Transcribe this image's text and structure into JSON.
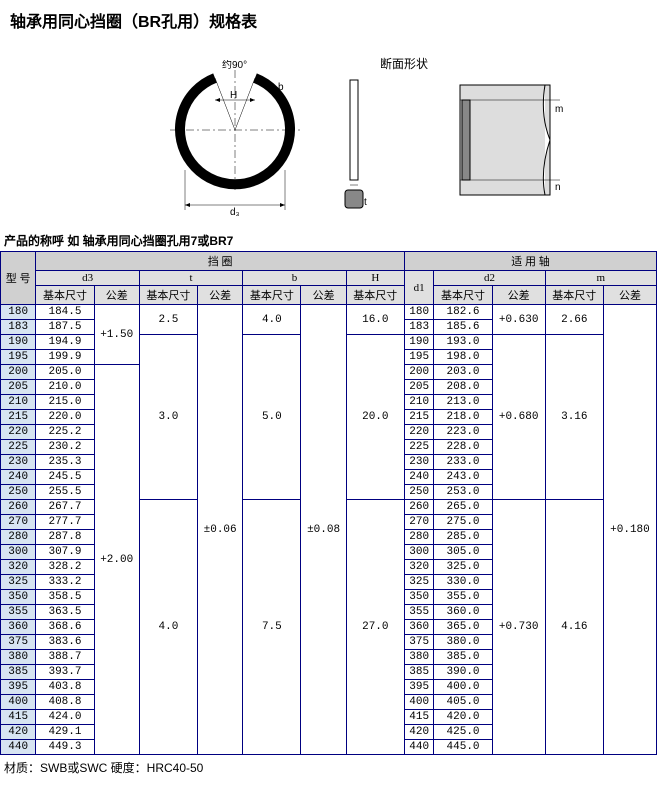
{
  "title": "轴承用同心挡圈（BR孔用）规格表",
  "diagram": {
    "approx_label": "约90°",
    "cross_label": "断面形状",
    "dim_H": "H",
    "dim_b": "b",
    "dim_d3": "d₃",
    "dim_t": "t",
    "dim_m": "m",
    "dim_n": "n"
  },
  "subtitle": "产品的称呼 如 轴承用同心挡圈孔用7或BR7",
  "headers": {
    "model": "型 号",
    "ring": "挡 圈",
    "shaft": "适 用 轴",
    "d3": "d3",
    "t": "t",
    "b": "b",
    "H": "H",
    "d1": "d1",
    "d2": "d2",
    "m": "m",
    "basic": "基本尺寸",
    "tol": "公差"
  },
  "tol_d3_1": "+1.50",
  "tol_d3_2": "+2.00",
  "tol_t": "±0.06",
  "tol_b": "±0.08",
  "tol_d2_1": "+0.630",
  "tol_d2_2": "+0.680",
  "tol_d2_3": "+0.730",
  "tol_m": "+0.180",
  "rows": [
    {
      "id": "180",
      "d3": "184.5",
      "t": "2.5",
      "b": "4.0",
      "H": "16.0",
      "d1": "180",
      "d2": "182.6",
      "m": "2.66"
    },
    {
      "id": "183",
      "d3": "187.5",
      "t": "",
      "b": "",
      "H": "",
      "d1": "183",
      "d2": "185.6",
      "m": ""
    },
    {
      "id": "190",
      "d3": "194.9",
      "t": "",
      "b": "",
      "H": "",
      "d1": "190",
      "d2": "193.0",
      "m": ""
    },
    {
      "id": "195",
      "d3": "199.9",
      "t": "",
      "b": "",
      "H": "",
      "d1": "195",
      "d2": "198.0",
      "m": ""
    },
    {
      "id": "200",
      "d3": "205.0",
      "t": "3.0",
      "b": "5.0",
      "H": "20.0",
      "d1": "200",
      "d2": "203.0",
      "m": "3.16"
    },
    {
      "id": "205",
      "d3": "210.0",
      "t": "",
      "b": "",
      "H": "",
      "d1": "205",
      "d2": "208.0",
      "m": ""
    },
    {
      "id": "210",
      "d3": "215.0",
      "t": "",
      "b": "",
      "H": "",
      "d1": "210",
      "d2": "213.0",
      "m": ""
    },
    {
      "id": "215",
      "d3": "220.0",
      "t": "",
      "b": "",
      "H": "",
      "d1": "215",
      "d2": "218.0",
      "m": ""
    },
    {
      "id": "220",
      "d3": "225.2",
      "t": "",
      "b": "",
      "H": "",
      "d1": "220",
      "d2": "223.0",
      "m": ""
    },
    {
      "id": "225",
      "d3": "230.2",
      "t": "",
      "b": "",
      "H": "",
      "d1": "225",
      "d2": "228.0",
      "m": ""
    },
    {
      "id": "230",
      "d3": "235.3",
      "t": "",
      "b": "",
      "H": "",
      "d1": "230",
      "d2": "233.0",
      "m": ""
    },
    {
      "id": "240",
      "d3": "245.5",
      "t": "",
      "b": "",
      "H": "",
      "d1": "240",
      "d2": "243.0",
      "m": ""
    },
    {
      "id": "250",
      "d3": "255.5",
      "t": "",
      "b": "",
      "H": "",
      "d1": "250",
      "d2": "253.0",
      "m": ""
    },
    {
      "id": "260",
      "d3": "267.7",
      "t": "",
      "b": "",
      "H": "",
      "d1": "260",
      "d2": "265.0",
      "m": ""
    },
    {
      "id": "270",
      "d3": "277.7",
      "t": "",
      "b": "",
      "H": "",
      "d1": "270",
      "d2": "275.0",
      "m": ""
    },
    {
      "id": "280",
      "d3": "287.8",
      "t": "",
      "b": "",
      "H": "",
      "d1": "280",
      "d2": "285.0",
      "m": ""
    },
    {
      "id": "300",
      "d3": "307.9",
      "t": "",
      "b": "",
      "H": "",
      "d1": "300",
      "d2": "305.0",
      "m": ""
    },
    {
      "id": "320",
      "d3": "328.2",
      "t": "",
      "b": "",
      "H": "",
      "d1": "320",
      "d2": "325.0",
      "m": ""
    },
    {
      "id": "325",
      "d3": "333.2",
      "t": "",
      "b": "",
      "H": "",
      "d1": "325",
      "d2": "330.0",
      "m": ""
    },
    {
      "id": "350",
      "d3": "358.5",
      "t": "4.0",
      "b": "7.5",
      "H": "27.0",
      "d1": "350",
      "d2": "355.0",
      "m": "4.16"
    },
    {
      "id": "355",
      "d3": "363.5",
      "t": "",
      "b": "",
      "H": "",
      "d1": "355",
      "d2": "360.0",
      "m": ""
    },
    {
      "id": "360",
      "d3": "368.6",
      "t": "",
      "b": "",
      "H": "",
      "d1": "360",
      "d2": "365.0",
      "m": ""
    },
    {
      "id": "375",
      "d3": "383.6",
      "t": "",
      "b": "",
      "H": "",
      "d1": "375",
      "d2": "380.0",
      "m": ""
    },
    {
      "id": "380",
      "d3": "388.7",
      "t": "",
      "b": "",
      "H": "",
      "d1": "380",
      "d2": "385.0",
      "m": ""
    },
    {
      "id": "385",
      "d3": "393.7",
      "t": "",
      "b": "",
      "H": "",
      "d1": "385",
      "d2": "390.0",
      "m": ""
    },
    {
      "id": "395",
      "d3": "403.8",
      "t": "",
      "b": "",
      "H": "",
      "d1": "395",
      "d2": "400.0",
      "m": ""
    },
    {
      "id": "400",
      "d3": "408.8",
      "t": "",
      "b": "",
      "H": "",
      "d1": "400",
      "d2": "405.0",
      "m": ""
    },
    {
      "id": "415",
      "d3": "424.0",
      "t": "",
      "b": "",
      "H": "",
      "d1": "415",
      "d2": "420.0",
      "m": ""
    },
    {
      "id": "420",
      "d3": "429.1",
      "t": "",
      "b": "",
      "H": "",
      "d1": "420",
      "d2": "425.0",
      "m": ""
    },
    {
      "id": "440",
      "d3": "449.3",
      "t": "",
      "b": "",
      "H": "",
      "d1": "440",
      "d2": "445.0",
      "m": ""
    }
  ],
  "footer": "材质：SWB或SWC  硬度：HRC40-50",
  "colors": {
    "border": "#000080",
    "header_bg": "#d0d0d0",
    "rowlabel_bg": "#d7e4f2"
  }
}
